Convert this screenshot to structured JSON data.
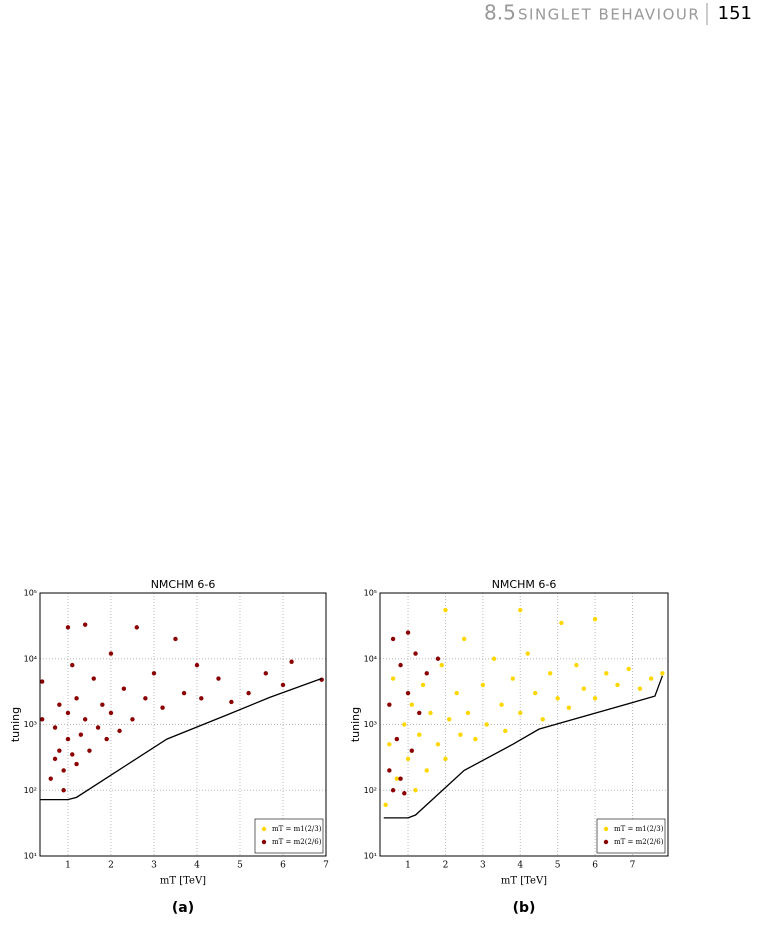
{
  "header": {
    "section": "8.5",
    "title": "singlet behaviour",
    "page": "151"
  },
  "captions": [
    "(a)",
    "(b)"
  ],
  "chart_data": [
    {
      "type": "scatter",
      "title": "NMCHM 6-6",
      "x_label": "mT [TeV]",
      "y_label": "tuning",
      "yscale": "log",
      "grid": true,
      "legend": "lower right",
      "xlim": [
        0.35,
        7
      ],
      "ylim": [
        10,
        100000
      ],
      "xticks": [
        1,
        2,
        3,
        4,
        5,
        6,
        7
      ],
      "yticks": [
        {
          "value": 10,
          "label": "10¹"
        },
        {
          "value": 100,
          "label": "10²"
        },
        {
          "value": 1000,
          "label": "10³"
        },
        {
          "value": 10000,
          "label": "10⁴"
        },
        {
          "value": 100000,
          "label": "10⁵"
        }
      ],
      "series": [
        {
          "name": "mT = m1(2/3)",
          "color": "#ffd700",
          "x": [],
          "values": []
        },
        {
          "name": "mT = m2(2/6)",
          "color": "#8b0000",
          "x": [
            0.4,
            0.4,
            0.6,
            0.7,
            0.7,
            0.8,
            0.8,
            0.9,
            0.9,
            1,
            1,
            1,
            1.1,
            1.1,
            1.2,
            1.2,
            1.3,
            1.4,
            1.4,
            1.5,
            1.6,
            1.7,
            1.8,
            1.9,
            2,
            2,
            2.2,
            2.3,
            2.5,
            2.6,
            2.8,
            3,
            3.2,
            3.5,
            3.7,
            4,
            4.1,
            4.5,
            4.8,
            5.2,
            5.6,
            6,
            6.2,
            6.9
          ],
          "values": [
            1200,
            4500,
            150,
            300,
            900,
            2000,
            400,
            200,
            100,
            30000,
            600,
            1500,
            350,
            8000,
            250,
            2500,
            700,
            33000,
            1200,
            400,
            5000,
            900,
            2000,
            600,
            12000,
            1500,
            800,
            3500,
            1200,
            30000,
            2500,
            6000,
            1800,
            20000,
            3000,
            8000,
            2500,
            5000,
            2200,
            3000,
            6000,
            4000,
            9000,
            4800
          ]
        }
      ],
      "line": {
        "color": "#000000",
        "x": [
          0.35,
          1,
          1.2,
          1.8,
          3.3,
          4.7,
          5.7,
          6.9
        ],
        "values": [
          72,
          72,
          78,
          140,
          600,
          1400,
          2600,
          5000
        ]
      }
    },
    {
      "type": "scatter",
      "title": "NMCHM 6-6",
      "x_label": "mT [TeV]",
      "y_label": "tuning",
      "yscale": "log",
      "grid": true,
      "legend": "lower right",
      "xlim": [
        0.25,
        7.95
      ],
      "ylim": [
        10,
        100000
      ],
      "xticks": [
        1,
        2,
        3,
        4,
        5,
        6,
        7
      ],
      "yticks": [
        {
          "value": 10,
          "label": "10¹"
        },
        {
          "value": 100,
          "label": "10²"
        },
        {
          "value": 1000,
          "label": "10³"
        },
        {
          "value": 10000,
          "label": "10⁴"
        },
        {
          "value": 100000,
          "label": "10⁵"
        }
      ],
      "series": [
        {
          "name": "mT = m1(2/3)",
          "color": "#ffd700",
          "x": [
            0.4,
            0.5,
            0.6,
            0.7,
            0.9,
            1,
            1.1,
            1.2,
            1.3,
            1.4,
            1.5,
            1.6,
            1.8,
            1.9,
            2,
            2,
            2.1,
            2.3,
            2.4,
            2.5,
            2.6,
            2.8,
            3,
            3.1,
            3.3,
            3.5,
            3.6,
            3.8,
            4,
            4,
            4.2,
            4.4,
            4.6,
            4.8,
            5,
            5.1,
            5.3,
            5.5,
            5.7,
            6,
            6,
            6.3,
            6.6,
            6.9,
            7.2,
            7.5,
            7.8
          ],
          "values": [
            60,
            500,
            5000,
            150,
            1000,
            300,
            2000,
            100,
            700,
            4000,
            200,
            1500,
            500,
            8000,
            300,
            55000,
            1200,
            3000,
            700,
            20000,
            1500,
            600,
            4000,
            1000,
            10000,
            2000,
            800,
            5000,
            55000,
            1500,
            12000,
            3000,
            1200,
            6000,
            2500,
            35000,
            1800,
            8000,
            3500,
            40000,
            2500,
            6000,
            4000,
            7000,
            3500,
            5000,
            6000
          ]
        },
        {
          "name": "mT = m2(2/6)",
          "color": "#8b0000",
          "x": [
            0.5,
            0.5,
            0.6,
            0.7,
            0.8,
            0.8,
            0.9,
            1,
            1,
            1.1,
            1.2,
            1.3,
            1.5,
            1.8,
            0.6
          ],
          "values": [
            200,
            2000,
            20000,
            600,
            150,
            8000,
            90,
            25000,
            3000,
            400,
            12000,
            1500,
            6000,
            10000,
            100
          ]
        }
      ],
      "line": {
        "color": "#000000",
        "x": [
          0.35,
          1,
          1.2,
          2.5,
          3.8,
          4.5,
          7.6,
          7.8
        ],
        "values": [
          38,
          38,
          42,
          200,
          500,
          850,
          2700,
          5500
        ]
      }
    }
  ]
}
